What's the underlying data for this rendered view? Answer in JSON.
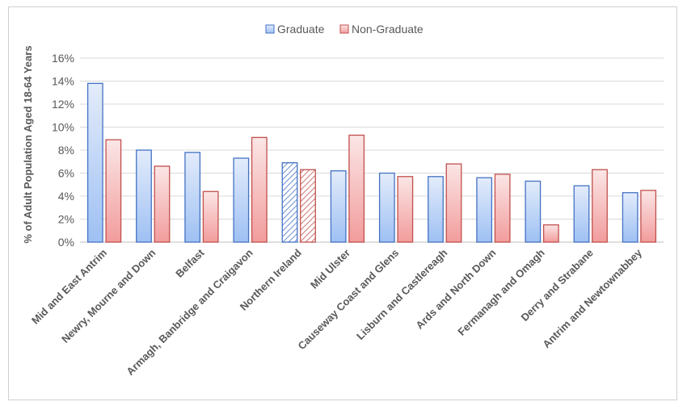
{
  "chart_data": {
    "type": "bar",
    "title": "",
    "xlabel": "",
    "ylabel": "% of Adult Population Aged 18-64 Years",
    "ylim": [
      0,
      16
    ],
    "yticks": [
      "0%",
      "2%",
      "4%",
      "6%",
      "8%",
      "10%",
      "12%",
      "14%",
      "16%"
    ],
    "grid": true,
    "legend_position": "top-center",
    "categories": [
      "Mid and East Antrim",
      "Newry, Mourne and Down",
      "Belfast",
      "Armagh, Banbridge and Craigavon",
      "Northern Ireland",
      "Mid Ulster",
      "Causeway Coast and Glens",
      "Lisburn and Castlereagh",
      "Ards and North Down",
      "Fermanagh and Omagh",
      "Derry and Strabane",
      "Antrim and Newtownabbey"
    ],
    "highlighted_category": "Northern Ireland",
    "series": [
      {
        "name": "Graduate",
        "color": "#4472c4",
        "fill_light": "#e3ecfb",
        "fill_dark": "#9ec0f3",
        "values": [
          13.8,
          8.0,
          7.8,
          7.3,
          6.9,
          6.2,
          6.0,
          5.7,
          5.6,
          5.3,
          4.9,
          4.3
        ]
      },
      {
        "name": "Non-Graduate",
        "color": "#c0504d",
        "fill_light": "#fbe6e6",
        "fill_dark": "#f29c9c",
        "values": [
          8.9,
          6.6,
          4.4,
          9.1,
          6.3,
          9.3,
          5.7,
          6.8,
          5.9,
          1.5,
          6.3,
          4.5
        ]
      }
    ]
  }
}
